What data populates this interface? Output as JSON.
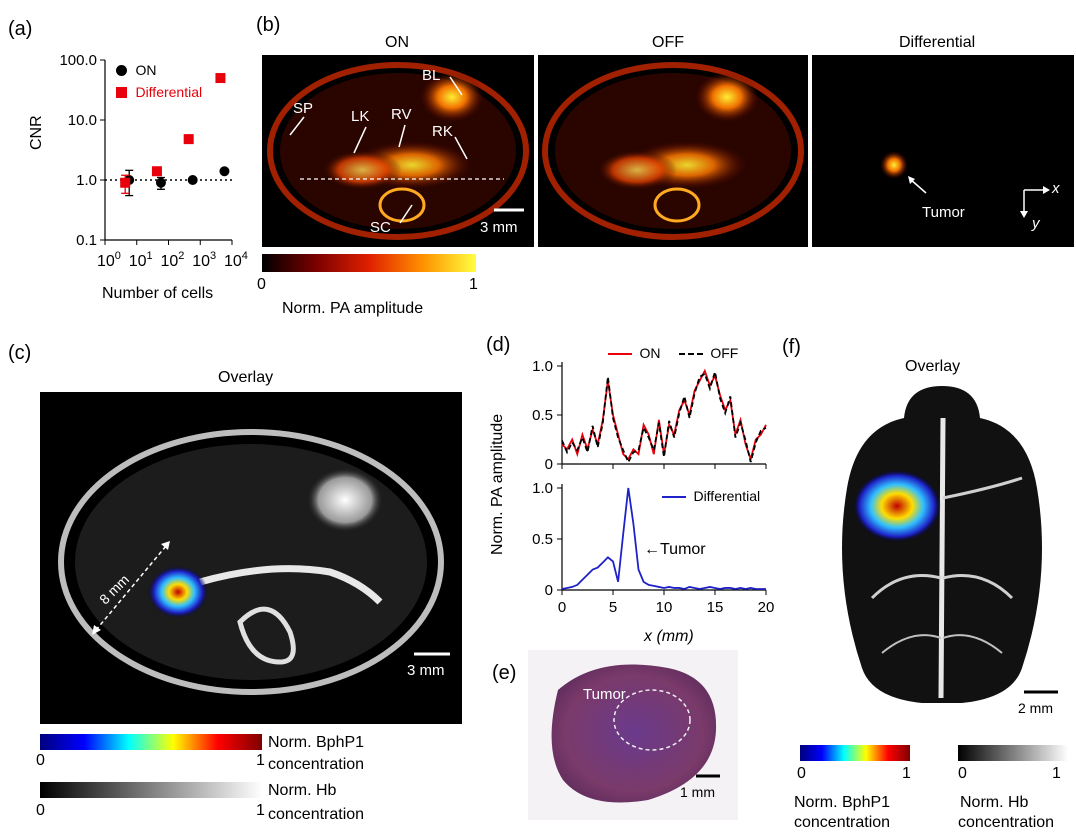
{
  "panel_labels": {
    "a": "(a)",
    "b": "(b)",
    "c": "(c)",
    "d": "(d)",
    "e": "(e)",
    "f": "(f)"
  },
  "panel_a": {
    "chart_data": {
      "type": "scatter",
      "xlabel": "Number of cells",
      "ylabel": "CNR",
      "xscale": "log",
      "yscale": "log",
      "xlim": [
        1,
        10000
      ],
      "ylim": [
        0.1,
        100
      ],
      "xticks": [
        "10^0",
        "10^1",
        "10^2",
        "10^3",
        "10^4"
      ],
      "yticks": [
        "100.0",
        "10.0",
        "1.0",
        "0.1"
      ],
      "legend_placement": "top-left",
      "reference_line": 1.0,
      "series": [
        {
          "name": "ON",
          "color": "#000000",
          "x": [
            5,
            50,
            500,
            5000
          ],
          "y": [
            1.0,
            0.9,
            1.0,
            1.4
          ],
          "err": [
            0.45,
            0.2,
            0,
            0
          ]
        },
        {
          "name": "Differential",
          "color": "#e8000b",
          "x": [
            5,
            50,
            500,
            5000
          ],
          "y": [
            0.9,
            1.4,
            4.8,
            50
          ],
          "err": [
            0.3,
            0,
            0,
            0
          ]
        }
      ]
    }
  },
  "panel_b": {
    "titles": [
      "ON",
      "OFF",
      "Differential"
    ],
    "annotations": [
      "SP",
      "LK",
      "RV",
      "BL",
      "RK",
      "SC"
    ],
    "scale": "3 mm",
    "tumor": "Tumor",
    "axis_x": "x",
    "axis_y": "y",
    "colorbar": {
      "min": "0",
      "max": "1",
      "label": "Norm. PA amplitude"
    }
  },
  "panel_c": {
    "title": "Overlay",
    "distance": "8 mm",
    "scale": "3 mm",
    "colorbar1": {
      "min": "0",
      "max": "1",
      "label_line1": "Norm. BphP1",
      "label_line2": "concentration"
    },
    "colorbar2": {
      "min": "0",
      "max": "1",
      "label_line1": "Norm. Hb",
      "label_line2": "concentration"
    }
  },
  "panel_d": {
    "chart_data": [
      {
        "type": "line",
        "xlim": [
          0,
          20
        ],
        "ylim": [
          0,
          1.0
        ],
        "yticks": [
          "0",
          "0.5",
          "1.0"
        ],
        "legend_placement": "top",
        "series": [
          {
            "name": "ON",
            "color": "#e8000b",
            "style": "solid"
          },
          {
            "name": "OFF",
            "color": "#000000",
            "style": "dashed"
          }
        ],
        "x": [
          0,
          0.5,
          1,
          1.5,
          2,
          2.5,
          3,
          3.5,
          4,
          4.5,
          5,
          5.5,
          6,
          6.5,
          7,
          7.5,
          8,
          8.5,
          9,
          9.5,
          10,
          10.5,
          11,
          11.5,
          12,
          12.5,
          13,
          13.5,
          14,
          14.5,
          15,
          15.5,
          16,
          16.5,
          17,
          17.5,
          18,
          18.5,
          19,
          19.5,
          20
        ],
        "y": [
          0.2,
          0.15,
          0.25,
          0.1,
          0.3,
          0.15,
          0.35,
          0.2,
          0.45,
          0.85,
          0.5,
          0.3,
          0.1,
          0.05,
          0.15,
          0.1,
          0.4,
          0.3,
          0.1,
          0.45,
          0.1,
          0.4,
          0.3,
          0.55,
          0.65,
          0.5,
          0.75,
          0.85,
          0.95,
          0.8,
          0.9,
          0.7,
          0.55,
          0.65,
          0.3,
          0.45,
          0.2,
          0.05,
          0.25,
          0.3,
          0.4
        ]
      },
      {
        "type": "line",
        "xlim": [
          0,
          20
        ],
        "ylim": [
          0,
          1.0
        ],
        "xticks": [
          "0",
          "5",
          "10",
          "15",
          "20"
        ],
        "yticks": [
          "0",
          "0.5",
          "1.0"
        ],
        "xlabel": "x (mm)",
        "legend_placement": "top-right",
        "annotation": "Tumor",
        "series": [
          {
            "name": "Differential",
            "color": "#1e22c8",
            "style": "solid"
          }
        ],
        "x": [
          0,
          0.5,
          1,
          1.5,
          2,
          2.5,
          3,
          3.5,
          4,
          4.5,
          5,
          5.5,
          6,
          6.5,
          7,
          7.5,
          8,
          8.5,
          9,
          9.5,
          10,
          10.5,
          11,
          11.5,
          12,
          12.5,
          13,
          13.5,
          14,
          14.5,
          15,
          15.5,
          16,
          16.5,
          17,
          17.5,
          18,
          18.5,
          19,
          19.5,
          20
        ],
        "y": [
          0.01,
          0.02,
          0.03,
          0.05,
          0.1,
          0.15,
          0.2,
          0.22,
          0.27,
          0.32,
          0.28,
          0.08,
          0.55,
          1.0,
          0.65,
          0.2,
          0.08,
          0.05,
          0.04,
          0.03,
          0.02,
          0.03,
          0.02,
          0.02,
          0.01,
          0.03,
          0.02,
          0.01,
          0.02,
          0.03,
          0.02,
          0.01,
          0.02,
          0.02,
          0.01,
          0.02,
          0.01,
          0.02,
          0.01,
          0.01,
          0.01
        ]
      }
    ],
    "ylabel": "Norm. PA amplitude"
  },
  "panel_e": {
    "tumor": "Tumor",
    "scale": "1 mm"
  },
  "panel_f": {
    "title": "Overlay",
    "scale": "2 mm",
    "colorbar1": {
      "min": "0",
      "max": "1",
      "label_line1": "Norm. BphP1",
      "label_line2": "concentration"
    },
    "colorbar2": {
      "min": "0",
      "max": "1",
      "label_line1": "Norm. Hb",
      "label_line2": "concentration"
    }
  },
  "colors": {
    "hot_dark": "#000000",
    "hot_red": "#c81a00",
    "hot_yellow": "#ffee33",
    "jet_blue": "#1e22c8",
    "jet_red": "#c00000"
  }
}
